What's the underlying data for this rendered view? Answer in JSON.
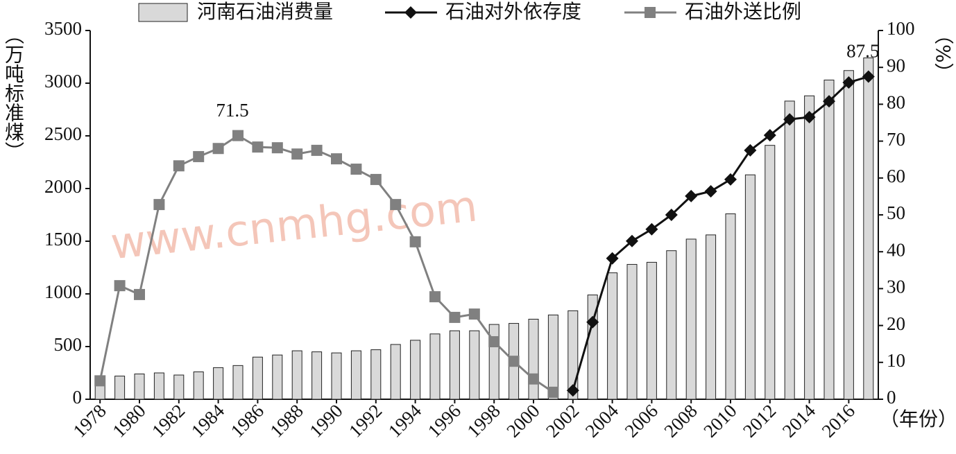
{
  "chart_data": {
    "type": "combo",
    "watermark": "www.cnmhg.com",
    "ylabel": "（万吨标准煤）",
    "y2label": "（%）",
    "xlabel": "（年份）",
    "categories": [
      "1978",
      null,
      "1980",
      null,
      "1982",
      null,
      "1984",
      null,
      "1986",
      null,
      "1988",
      null,
      "1990",
      null,
      "1992",
      null,
      "1994",
      null,
      "1996",
      null,
      "1998",
      null,
      "2000",
      null,
      "2002",
      null,
      "2004",
      null,
      "2006",
      null,
      "2008",
      null,
      "2010",
      null,
      "2012",
      null,
      "2014",
      null,
      "2016",
      null
    ],
    "series": [
      {
        "name": "河南石油消费量",
        "type": "bar",
        "color": "#d9d9d9",
        "values": [
          220,
          220,
          240,
          250,
          230,
          260,
          300,
          320,
          400,
          420,
          460,
          450,
          440,
          460,
          470,
          520,
          560,
          620,
          650,
          650,
          710,
          720,
          760,
          800,
          840,
          990,
          1200,
          1280,
          1300,
          1410,
          1520,
          1560,
          1760,
          2130,
          2410,
          2830,
          2880,
          3030,
          3120,
          3240
        ]
      },
      {
        "name": "石油对外依存度",
        "type": "line",
        "marker": "diamond",
        "axis": "y2",
        "color": "#111111",
        "values": [
          null,
          null,
          null,
          null,
          null,
          null,
          null,
          null,
          null,
          null,
          null,
          null,
          null,
          null,
          null,
          null,
          null,
          null,
          null,
          null,
          null,
          null,
          null,
          null,
          2.4,
          20.9,
          38.2,
          42.9,
          46.1,
          50,
          55.1,
          56.4,
          59.6,
          67.5,
          71.6,
          75.9,
          76.5,
          80.8,
          85.9,
          87.5
        ]
      },
      {
        "name": "石油外送比例",
        "type": "line",
        "marker": "square",
        "axis": "y2",
        "color": "#808080",
        "values": [
          5,
          30.8,
          28.4,
          52.8,
          63.3,
          65.8,
          68,
          71.5,
          68.4,
          68.2,
          66.5,
          67.5,
          65.2,
          62.4,
          59.6,
          52.8,
          42.7,
          27.8,
          22.2,
          23.1,
          15.6,
          10.3,
          5.5,
          1.9,
          null,
          null,
          null,
          null,
          null,
          null,
          null,
          null,
          null,
          null,
          null,
          null,
          null,
          null,
          null,
          null
        ]
      }
    ],
    "ylim": [
      0,
      3500
    ],
    "yticks": [
      0,
      500,
      1000,
      1500,
      2000,
      2500,
      3000,
      3500
    ],
    "y2lim": [
      0,
      100
    ],
    "y2ticks": [
      0,
      10,
      20,
      30,
      40,
      50,
      60,
      70,
      80,
      90,
      100
    ],
    "grid": false,
    "legend": "top"
  }
}
